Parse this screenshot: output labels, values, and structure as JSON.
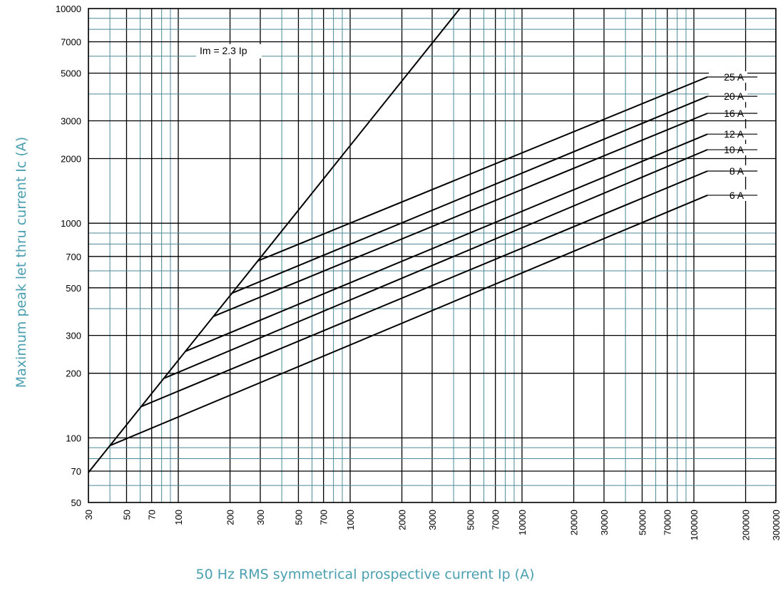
{
  "chart_data": {
    "type": "line",
    "xlabel": "50 Hz RMS symmetrical prospective current Ip (A)",
    "ylabel": "Maximum peak let thru current Ic (A)",
    "x_scale": "log",
    "y_scale": "log",
    "xlim": [
      30,
      300000
    ],
    "ylim": [
      50,
      10000
    ],
    "x_ticks": [
      {
        "value": 30,
        "label": "30"
      },
      {
        "value": 50,
        "label": "50"
      },
      {
        "value": 70,
        "label": "70"
      },
      {
        "value": 100,
        "label": "100"
      },
      {
        "value": 200,
        "label": "200"
      },
      {
        "value": 300,
        "label": "300"
      },
      {
        "value": 500,
        "label": "500"
      },
      {
        "value": 700,
        "label": "700"
      },
      {
        "value": 1000,
        "label": "1000"
      },
      {
        "value": 2000,
        "label": "2000"
      },
      {
        "value": 3000,
        "label": "3000"
      },
      {
        "value": 5000,
        "label": "5000"
      },
      {
        "value": 7000,
        "label": "7000"
      },
      {
        "value": 10000,
        "label": "10000"
      },
      {
        "value": 20000,
        "label": "20000"
      },
      {
        "value": 30000,
        "label": "30000"
      },
      {
        "value": 50000,
        "label": "50000"
      },
      {
        "value": 70000,
        "label": "70000"
      },
      {
        "value": 100000,
        "label": "100000"
      },
      {
        "value": 200000,
        "label": "200000"
      },
      {
        "value": 300000,
        "label": "300000"
      }
    ],
    "y_ticks": [
      {
        "value": 50,
        "label": "50"
      },
      {
        "value": 70,
        "label": "70"
      },
      {
        "value": 100,
        "label": "100"
      },
      {
        "value": 200,
        "label": "200"
      },
      {
        "value": 300,
        "label": "300"
      },
      {
        "value": 500,
        "label": "500"
      },
      {
        "value": 700,
        "label": "700"
      },
      {
        "value": 1000,
        "label": "1000"
      },
      {
        "value": 2000,
        "label": "2000"
      },
      {
        "value": 3000,
        "label": "3000"
      },
      {
        "value": 5000,
        "label": "5000"
      },
      {
        "value": 7000,
        "label": "7000"
      },
      {
        "value": 10000,
        "label": "10000"
      }
    ],
    "grid": true,
    "grid_colors": {
      "major": "#000000",
      "minor": "#4a8a94"
    },
    "series": [
      {
        "name": "Im = 2.3 Ip",
        "points": [
          [
            30,
            69
          ],
          [
            4350,
            10000
          ]
        ]
      },
      {
        "name": "25 A",
        "points": [
          [
            290,
            667
          ],
          [
            120000,
            4800
          ]
        ]
      },
      {
        "name": "20 A",
        "points": [
          [
            205,
            472
          ],
          [
            120000,
            3900
          ]
        ]
      },
      {
        "name": "16 A",
        "points": [
          [
            160,
            368
          ],
          [
            120000,
            3250
          ]
        ]
      },
      {
        "name": "12 A",
        "points": [
          [
            110,
            253
          ],
          [
            120000,
            2600
          ]
        ]
      },
      {
        "name": "10 A",
        "points": [
          [
            82,
            189
          ],
          [
            120000,
            2200
          ]
        ]
      },
      {
        "name": "8 A",
        "points": [
          [
            61,
            140
          ],
          [
            120000,
            1750
          ]
        ]
      },
      {
        "name": "6 A",
        "points": [
          [
            40,
            92
          ],
          [
            120000,
            1350
          ]
        ]
      }
    ]
  },
  "colors": {
    "text_accent": "#4a9fb0",
    "line": "#000000",
    "background": "#ffffff"
  }
}
